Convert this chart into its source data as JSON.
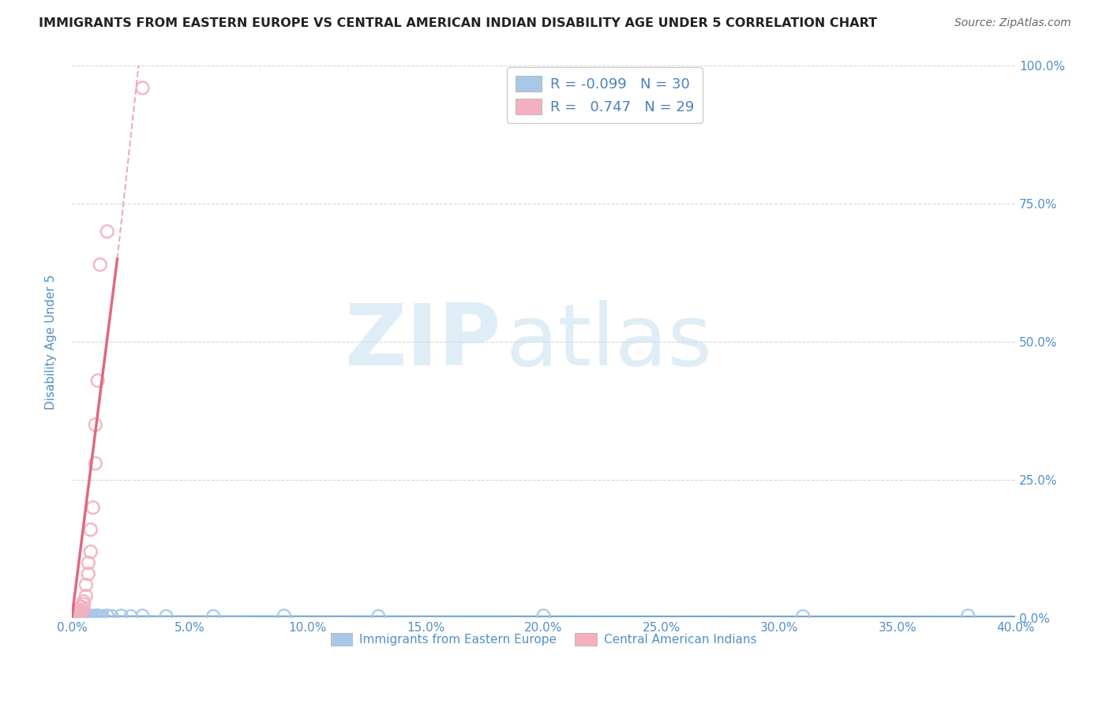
{
  "title": "IMMIGRANTS FROM EASTERN EUROPE VS CENTRAL AMERICAN INDIAN DISABILITY AGE UNDER 5 CORRELATION CHART",
  "source": "Source: ZipAtlas.com",
  "ylabel": "Disability Age Under 5",
  "xlabel_blue": "Immigrants from Eastern Europe",
  "xlabel_pink": "Central American Indians",
  "watermark_zip": "ZIP",
  "watermark_atlas": "atlas",
  "legend_R_blue": "-0.099",
  "legend_N_blue": "30",
  "legend_R_pink": "0.747",
  "legend_N_pink": "29",
  "blue_scatter_color": "#a8c8e8",
  "pink_scatter_color": "#f4b0c0",
  "regression_blue_color": "#5090c8",
  "regression_pink_color": "#e06880",
  "title_color": "#222222",
  "source_color": "#666666",
  "axis_color": "#5090c8",
  "legend_text_color": "#4a80c0",
  "grid_color": "#d8d8d8",
  "background_color": "#ffffff",
  "xlim": [
    0.0,
    0.4
  ],
  "ylim": [
    0.0,
    1.0
  ],
  "xticks": [
    0.0,
    0.05,
    0.1,
    0.15,
    0.2,
    0.25,
    0.3,
    0.35,
    0.4
  ],
  "yticks": [
    0.0,
    0.25,
    0.5,
    0.75,
    1.0
  ],
  "blue_x": [
    0.001,
    0.002,
    0.003,
    0.003,
    0.004,
    0.004,
    0.005,
    0.005,
    0.006,
    0.006,
    0.007,
    0.008,
    0.009,
    0.01,
    0.01,
    0.011,
    0.012,
    0.013,
    0.015,
    0.017,
    0.021,
    0.025,
    0.03,
    0.04,
    0.06,
    0.09,
    0.13,
    0.2,
    0.31,
    0.38
  ],
  "blue_y": [
    0.003,
    0.002,
    0.004,
    0.003,
    0.003,
    0.005,
    0.003,
    0.004,
    0.003,
    0.004,
    0.003,
    0.004,
    0.002,
    0.004,
    0.003,
    0.004,
    0.003,
    0.003,
    0.004,
    0.003,
    0.004,
    0.003,
    0.004,
    0.003,
    0.003,
    0.004,
    0.003,
    0.004,
    0.003,
    0.004
  ],
  "pink_x": [
    0.0005,
    0.001,
    0.001,
    0.0015,
    0.002,
    0.002,
    0.002,
    0.0025,
    0.003,
    0.003,
    0.003,
    0.004,
    0.004,
    0.005,
    0.005,
    0.005,
    0.006,
    0.006,
    0.007,
    0.007,
    0.008,
    0.008,
    0.009,
    0.01,
    0.01,
    0.011,
    0.012,
    0.015,
    0.03
  ],
  "pink_y": [
    0.003,
    0.004,
    0.003,
    0.005,
    0.004,
    0.006,
    0.007,
    0.008,
    0.01,
    0.006,
    0.015,
    0.012,
    0.02,
    0.025,
    0.015,
    0.03,
    0.04,
    0.06,
    0.08,
    0.1,
    0.12,
    0.16,
    0.2,
    0.28,
    0.35,
    0.43,
    0.64,
    0.7,
    0.96
  ]
}
